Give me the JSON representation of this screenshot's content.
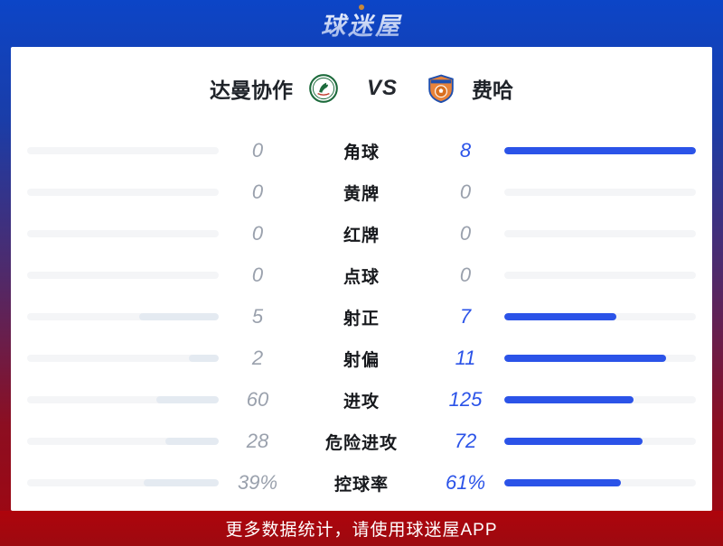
{
  "brand": {
    "logo_text": "球迷屋"
  },
  "match": {
    "home_team": "达曼协作",
    "away_team": "费哈",
    "vs_label": "VS",
    "home_logo": "ettifaq-green-circle-badge",
    "away_logo": "fayha-orange-blue-shield"
  },
  "stats": {
    "rows": [
      {
        "label": "角球",
        "left": "0",
        "right": "8",
        "left_num": 0,
        "right_num": 8
      },
      {
        "label": "黄牌",
        "left": "0",
        "right": "0",
        "left_num": 0,
        "right_num": 0
      },
      {
        "label": "红牌",
        "left": "0",
        "right": "0",
        "left_num": 0,
        "right_num": 0
      },
      {
        "label": "点球",
        "left": "0",
        "right": "0",
        "left_num": 0,
        "right_num": 0
      },
      {
        "label": "射正",
        "left": "5",
        "right": "7",
        "left_num": 5,
        "right_num": 7
      },
      {
        "label": "射偏",
        "left": "2",
        "right": "11",
        "left_num": 2,
        "right_num": 11
      },
      {
        "label": "进攻",
        "left": "60",
        "right": "125",
        "left_num": 60,
        "right_num": 125
      },
      {
        "label": "危险进攻",
        "left": "28",
        "right": "72",
        "left_num": 28,
        "right_num": 72
      },
      {
        "label": "控球率",
        "left": "39%",
        "right": "61%",
        "left_num": 39,
        "right_num": 61
      }
    ]
  },
  "footer": {
    "text": "更多数据统计，请使用球迷屋APP"
  },
  "colors": {
    "accent_blue": "#2b53e8",
    "value_gray": "#9aa1ad",
    "home_fill": "#e4eaf1",
    "track_gray": "#f4f5f7",
    "footer_red": "#a5070e",
    "bg_top_blue": "#0c45c7",
    "bg_bottom_red": "#a2060f",
    "brand_dot_orange": "#c8883a",
    "home_badge_green": "#1d6b3c",
    "away_shield_orange": "#e8833a",
    "away_shield_blue": "#1f4fae"
  }
}
